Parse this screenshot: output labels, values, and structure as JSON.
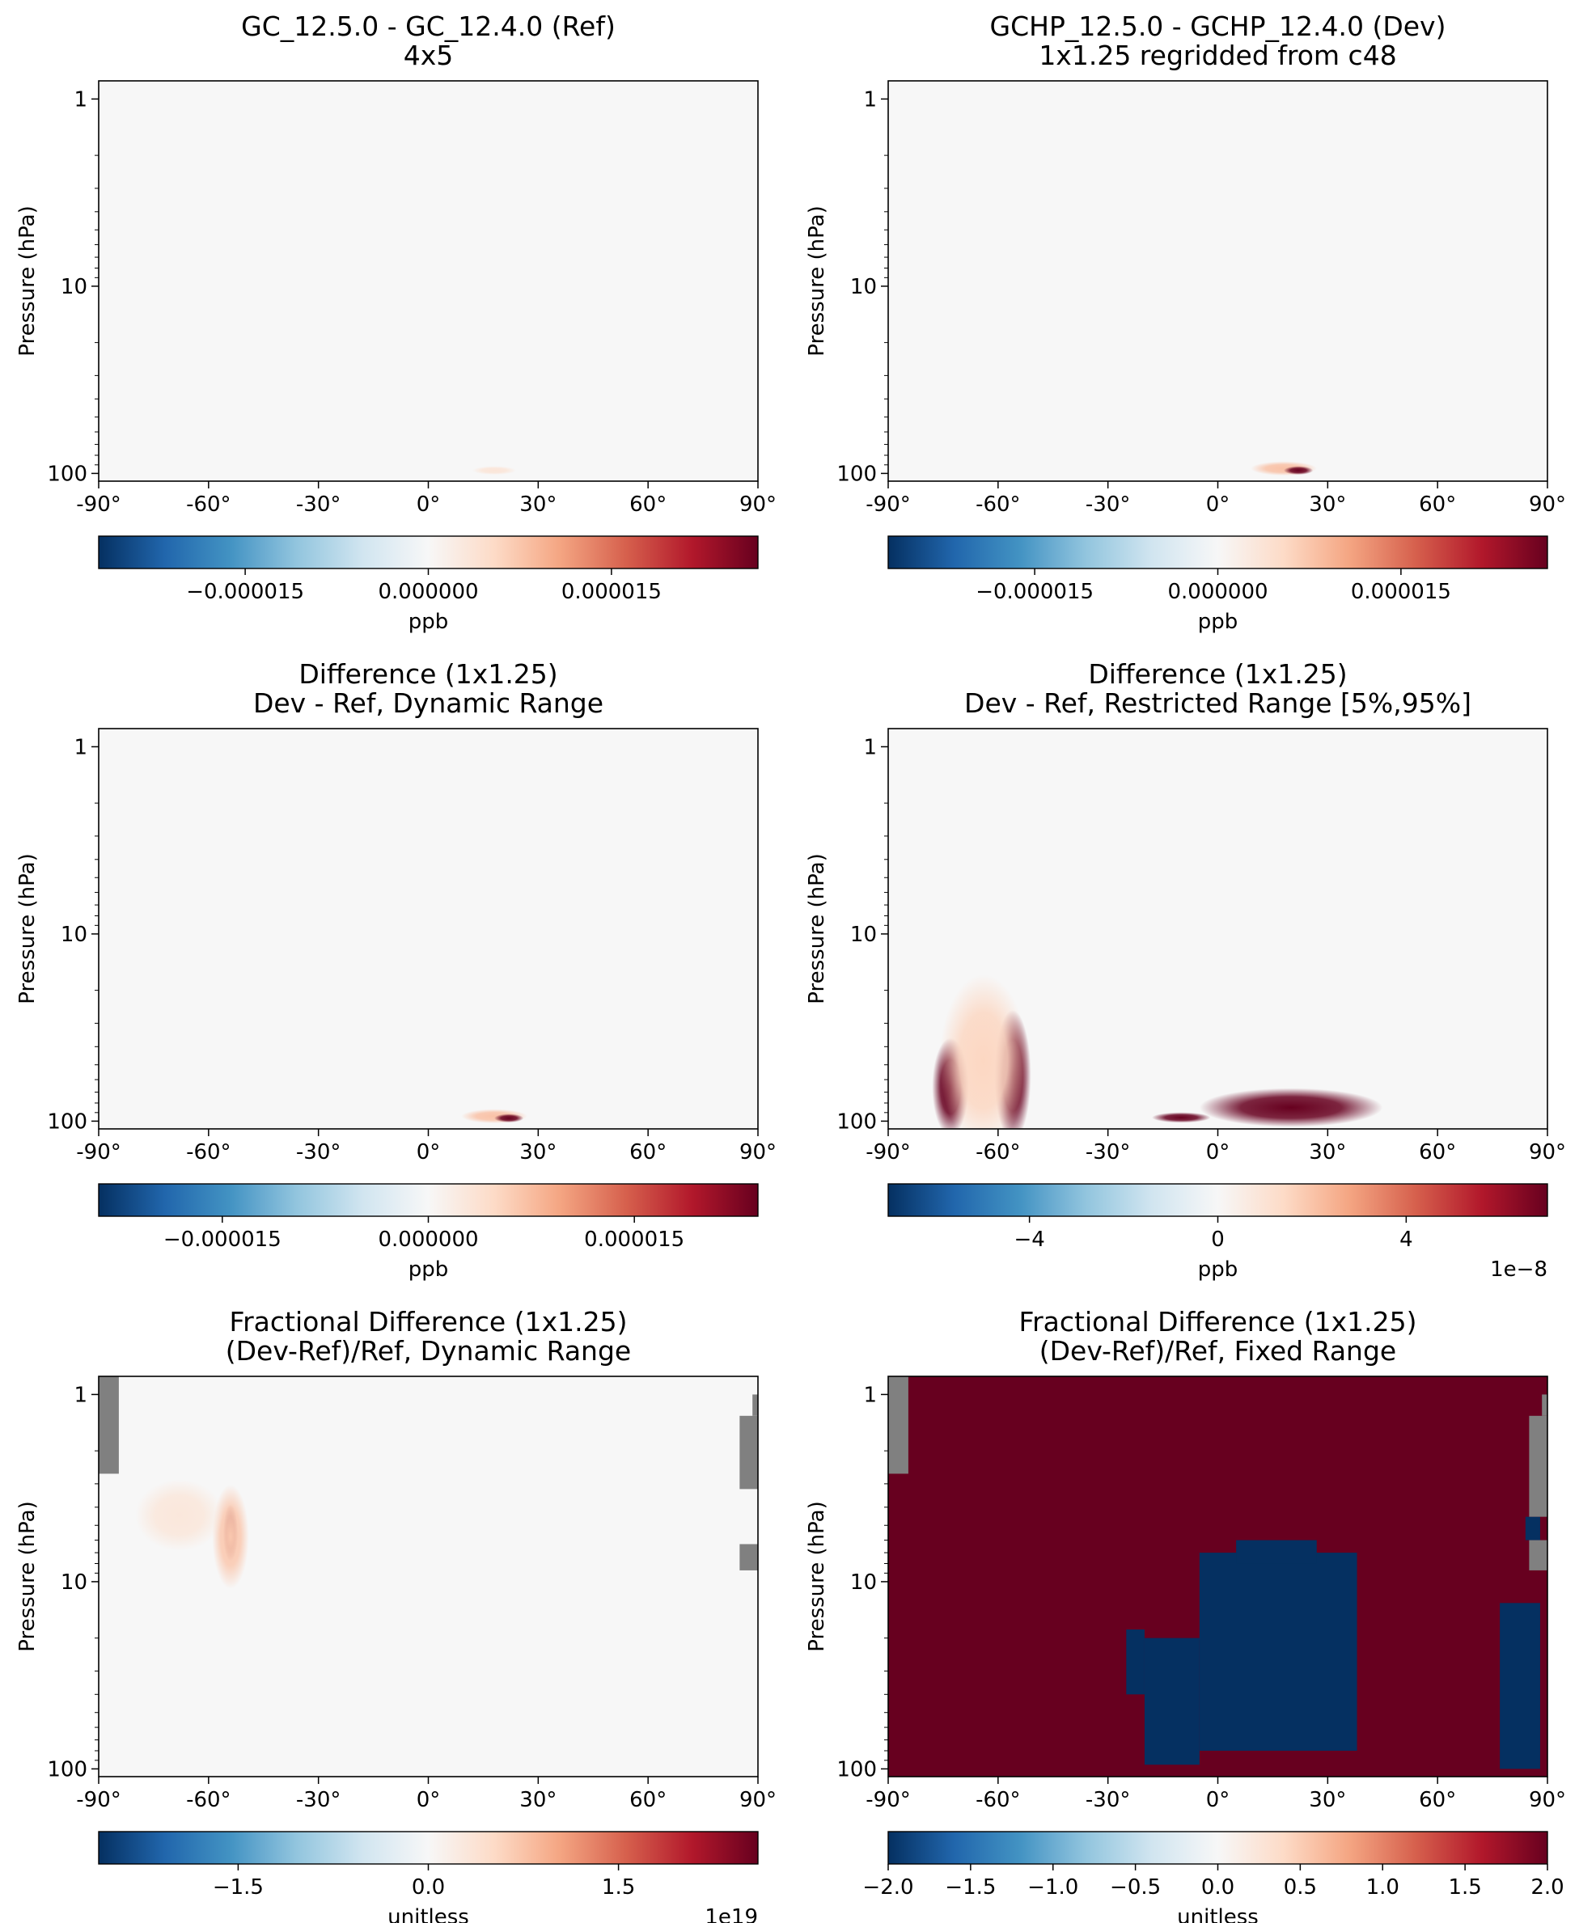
{
  "chart_data": [
    {
      "type": "heatmap",
      "title": "GC_12.5.0 - GC_12.4.0 (Ref)",
      "subtitle": "4x5",
      "xlabel": "",
      "ylabel": "Pressure (hPa)",
      "xlim": [
        -90,
        90
      ],
      "ylim": [
        100,
        1
      ],
      "yscale": "log",
      "xticks": [
        "-90°",
        "-60°",
        "-30°",
        "0°",
        "30°",
        "60°",
        "90°"
      ],
      "yticks": [
        "1",
        "10",
        "100"
      ],
      "colorbar": {
        "label": "ppb",
        "vmin": -2.7e-05,
        "vmax": 2.7e-05,
        "ticks": [
          "−0.000015",
          "0.000000",
          "0.000015"
        ],
        "tick_values": [
          -1.5e-05,
          0,
          1.5e-05
        ],
        "offset": "",
        "cmap": "RdBu_r"
      },
      "blobs": [
        {
          "lat": 18,
          "lat_width": 6,
          "p_top": 90,
          "p_bottom": 100,
          "value": 3.5e-06
        }
      ],
      "masks": []
    },
    {
      "type": "heatmap",
      "title": "GCHP_12.5.0 - GCHP_12.4.0 (Dev)",
      "subtitle": "1x1.25 regridded from c48",
      "xlabel": "",
      "ylabel": "Pressure (hPa)",
      "xlim": [
        -90,
        90
      ],
      "ylim": [
        100,
        1
      ],
      "yscale": "log",
      "xticks": [
        "-90°",
        "-60°",
        "-30°",
        "0°",
        "30°",
        "60°",
        "90°"
      ],
      "yticks": [
        "1",
        "10",
        "100"
      ],
      "colorbar": {
        "label": "ppb",
        "vmin": -2.7e-05,
        "vmax": 2.7e-05,
        "ticks": [
          "−0.000015",
          "0.000000",
          "0.000015"
        ],
        "tick_values": [
          -1.5e-05,
          0,
          1.5e-05
        ],
        "offset": "",
        "cmap": "RdBu_r"
      },
      "blobs": [
        {
          "lat": 18,
          "lat_width": 9,
          "p_top": 84,
          "p_bottom": 100,
          "value": 8e-06
        },
        {
          "lat": 22,
          "lat_width": 4,
          "p_top": 90,
          "p_bottom": 100,
          "value": 2.7e-05
        }
      ],
      "masks": []
    },
    {
      "type": "heatmap",
      "title": "Difference (1x1.25)",
      "subtitle": "Dev - Ref, Dynamic Range",
      "xlabel": "",
      "ylabel": "Pressure (hPa)",
      "xlim": [
        -90,
        90
      ],
      "ylim": [
        100,
        1
      ],
      "yscale": "log",
      "xticks": [
        "-90°",
        "-60°",
        "-30°",
        "0°",
        "30°",
        "60°",
        "90°"
      ],
      "yticks": [
        "1",
        "10",
        "100"
      ],
      "colorbar": {
        "label": "ppb",
        "vmin": -2.4e-05,
        "vmax": 2.4e-05,
        "ticks": [
          "−0.000015",
          "0.000000",
          "0.000015"
        ],
        "tick_values": [
          -1.5e-05,
          0,
          1.5e-05
        ],
        "offset": "",
        "cmap": "RdBu_r"
      },
      "blobs": [
        {
          "lat": 18,
          "lat_width": 9,
          "p_top": 84,
          "p_bottom": 100,
          "value": 7e-06
        },
        {
          "lat": 22,
          "lat_width": 4,
          "p_top": 90,
          "p_bottom": 100,
          "value": 2.4e-05
        }
      ],
      "masks": []
    },
    {
      "type": "heatmap",
      "title": "Difference (1x1.25)",
      "subtitle": "Dev - Ref, Restricted Range [5%,95%]",
      "xlabel": "",
      "ylabel": "Pressure (hPa)",
      "xlim": [
        -90,
        90
      ],
      "ylim": [
        100,
        1
      ],
      "yscale": "log",
      "xticks": [
        "-90°",
        "-60°",
        "-30°",
        "0°",
        "30°",
        "60°",
        "90°"
      ],
      "yticks": [
        "1",
        "10",
        "100"
      ],
      "colorbar": {
        "label": "ppb",
        "vmin": -7,
        "vmax": 7,
        "ticks": [
          "−4",
          "0",
          "4"
        ],
        "tick_values": [
          -4,
          0,
          4
        ],
        "offset": "1e−8",
        "cmap": "RdBu_r"
      },
      "blobs": [
        {
          "lat": -73,
          "lat_width": 5,
          "p_top": 30,
          "p_bottom": 100,
          "value": 7
        },
        {
          "lat": -56,
          "lat_width": 5,
          "p_top": 20,
          "p_bottom": 100,
          "value": 7
        },
        {
          "lat": -64,
          "lat_width": 12,
          "p_top": 12,
          "p_bottom": 100,
          "value": 1.5
        },
        {
          "lat": 20,
          "lat_width": 25,
          "p_top": 62,
          "p_bottom": 100,
          "value": 7
        },
        {
          "lat": -10,
          "lat_width": 8,
          "p_top": 88,
          "p_bottom": 100,
          "value": 7
        }
      ],
      "masks": []
    },
    {
      "type": "heatmap",
      "title": "Fractional Difference (1x1.25)",
      "subtitle": "(Dev-Ref)/Ref, Dynamic Range",
      "xlabel": "",
      "ylabel": "Pressure (hPa)",
      "xlim": [
        -90,
        90
      ],
      "ylim": [
        100,
        1
      ],
      "yscale": "log",
      "xticks": [
        "-90°",
        "-60°",
        "-30°",
        "0°",
        "30°",
        "60°",
        "90°"
      ],
      "yticks": [
        "1",
        "10",
        "100"
      ],
      "colorbar": {
        "label": "unitless",
        "vmin": -2.6,
        "vmax": 2.6,
        "ticks": [
          "−1.5",
          "0.0",
          "1.5"
        ],
        "tick_values": [
          -1.5,
          0,
          1.5
        ],
        "offset": "1e19",
        "cmap": "RdBu_r"
      },
      "blobs": [
        {
          "lat": -54,
          "lat_width": 2,
          "p_top": 3.5,
          "p_bottom": 7,
          "value": 2.6
        },
        {
          "lat": -54,
          "lat_width": 5,
          "p_top": 2.5,
          "p_bottom": 9,
          "value": 0.7
        },
        {
          "lat": -68,
          "lat_width": 12,
          "p_top": 2.5,
          "p_bottom": 6,
          "value": 0.3
        }
      ],
      "masks": [
        {
          "lat_min": -90,
          "lat_max": -84.5,
          "p_top": 0.8,
          "p_bottom": 2.65
        },
        {
          "lat_min": 85,
          "lat_max": 90,
          "p_top": 1.3,
          "p_bottom": 3.2
        },
        {
          "lat_min": 88.5,
          "lat_max": 90,
          "p_top": 1.0,
          "p_bottom": 1.3
        },
        {
          "lat_min": 85,
          "lat_max": 90,
          "p_top": 6.3,
          "p_bottom": 8.7
        }
      ]
    },
    {
      "type": "heatmap",
      "title": "Fractional Difference (1x1.25)",
      "subtitle": "(Dev-Ref)/Ref, Fixed Range",
      "xlabel": "",
      "ylabel": "Pressure (hPa)",
      "xlim": [
        -90,
        90
      ],
      "ylim": [
        100,
        1
      ],
      "yscale": "log",
      "xticks": [
        "-90°",
        "-60°",
        "-30°",
        "0°",
        "30°",
        "60°",
        "90°"
      ],
      "yticks": [
        "1",
        "10",
        "100"
      ],
      "colorbar": {
        "label": "unitless",
        "vmin": -2,
        "vmax": 2,
        "ticks": [
          "−2.0",
          "−1.5",
          "−1.0",
          "−0.5",
          "0.0",
          "0.5",
          "1.0",
          "1.5",
          "2.0"
        ],
        "tick_values": [
          -2,
          -1.5,
          -1,
          -0.5,
          0,
          0.5,
          1,
          1.5,
          2
        ],
        "offset": "",
        "cmap": "RdBu_r"
      },
      "background_value": 2,
      "blobs": [],
      "negative_regions": [
        {
          "lat_min": -5,
          "lat_max": 38,
          "p_top": 7.0,
          "p_bottom": 80
        },
        {
          "lat_min": 5,
          "lat_max": 27,
          "p_top": 6.0,
          "p_bottom": 8
        },
        {
          "lat_min": -20,
          "lat_max": -5,
          "p_top": 20,
          "p_bottom": 95
        },
        {
          "lat_min": -25,
          "lat_max": -20,
          "p_top": 18,
          "p_bottom": 40
        },
        {
          "lat_min": 77,
          "lat_max": 88,
          "p_top": 13,
          "p_bottom": 100
        },
        {
          "lat_min": 84,
          "lat_max": 88,
          "p_top": 4.5,
          "p_bottom": 6
        }
      ],
      "masks": [
        {
          "lat_min": -90,
          "lat_max": -84.5,
          "p_top": 0.8,
          "p_bottom": 2.65
        },
        {
          "lat_min": 85,
          "lat_max": 90,
          "p_top": 1.3,
          "p_bottom": 4.5
        },
        {
          "lat_min": 88.5,
          "lat_max": 90,
          "p_top": 1.0,
          "p_bottom": 1.3
        },
        {
          "lat_min": 85,
          "lat_max": 90,
          "p_top": 6.0,
          "p_bottom": 8.7
        }
      ]
    }
  ]
}
